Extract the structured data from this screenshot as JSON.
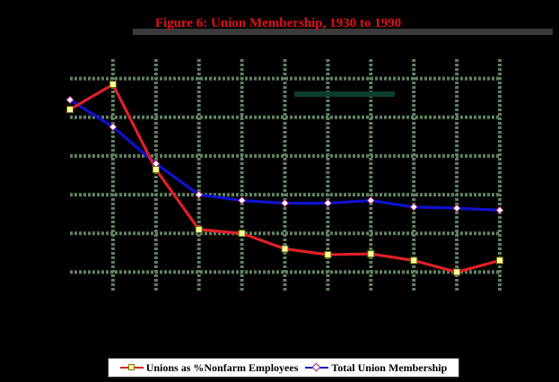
{
  "chart_data": {
    "type": "line",
    "title": "Figure 6: Union Membership, 1930 to 1990",
    "subtitle": "",
    "x": [
      0,
      1,
      2,
      3,
      4,
      5,
      6,
      7,
      8,
      9,
      10
    ],
    "series": [
      {
        "name": "Unions as %Nonfarm Employees",
        "color": "#e0202a",
        "marker": "square",
        "marker_color": "#ffffa0",
        "values": [
          42.0,
          48.5,
          26.5,
          11.0,
          10.0,
          6.0,
          4.5,
          4.7,
          3.0,
          0.0,
          3.0
        ]
      },
      {
        "name": "Total Union Membership",
        "color": "#1010d0",
        "marker": "diamond",
        "marker_color": "#ffffff",
        "values": [
          44.5,
          37.5,
          28.0,
          20.0,
          18.5,
          17.8,
          17.8,
          18.5,
          16.8,
          16.5,
          16.0
        ]
      }
    ],
    "ylim": [
      -5,
      55
    ],
    "grid": true,
    "grid_color": "#5f7f5f",
    "legend_position": "bottom",
    "inset_label_color": "#0b3d2a"
  }
}
